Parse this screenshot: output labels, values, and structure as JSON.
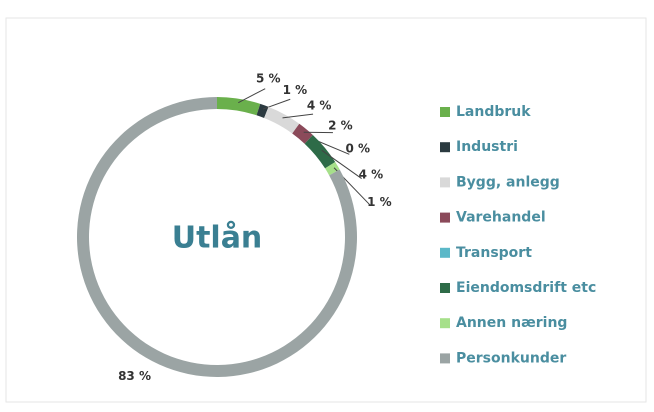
{
  "chart_data": {
    "type": "donut",
    "title": "Utlån",
    "categories": [
      "Landbruk",
      "Industri",
      "Bygg, anlegg",
      "Varehandel",
      "Transport",
      "Eiendomsdrift etc",
      "Annen næring",
      "Personkunder"
    ],
    "values": [
      5,
      1,
      4,
      2,
      0,
      4,
      1,
      83
    ],
    "value_labels": [
      "5 %",
      "1 %",
      "4 %",
      "2 %",
      "0 %",
      "4 %",
      "1 %",
      "83 %"
    ],
    "colors": [
      "#6ab04c",
      "#2b3a40",
      "#d9d9d9",
      "#8b4a5a",
      "#5bb8c8",
      "#2e6b48",
      "#a6e08a",
      "#9ba4a4"
    ],
    "legend": "right"
  }
}
